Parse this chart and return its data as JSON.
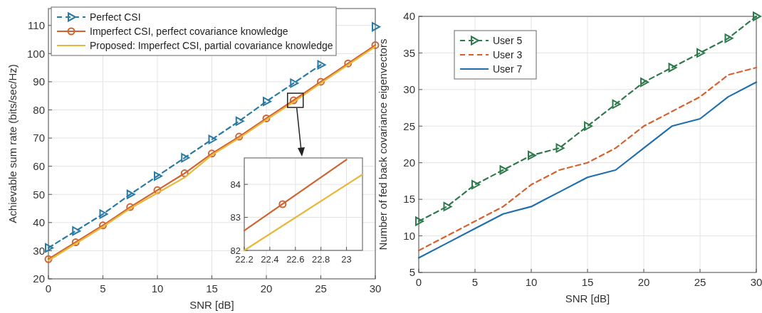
{
  "chart_data": [
    {
      "type": "line",
      "xlabel": "SNR  [dB]",
      "ylabel": "Achievable sum rate (bits/sec/Hz)",
      "x": [
        0,
        2.5,
        5,
        7.5,
        10,
        12.5,
        15,
        17.5,
        20,
        22.5,
        25,
        27.5,
        30
      ],
      "xlim": [
        0,
        30
      ],
      "xticks": [
        0,
        5,
        10,
        15,
        20,
        25,
        30
      ],
      "ylim": [
        20,
        116
      ],
      "yticks": [
        20,
        30,
        40,
        50,
        60,
        70,
        80,
        90,
        100,
        110
      ],
      "grid": true,
      "legend": "top",
      "series": [
        {
          "name": "Perfect CSI",
          "color": "#2a7aa6",
          "line_style": "dashed",
          "marker": "triangle",
          "values": [
            31,
            37,
            43,
            50,
            56.5,
            63,
            69.5,
            76,
            83,
            89.5,
            96,
            null,
            109.5
          ]
        },
        {
          "name": "Imperfect CSI, perfect covariance knowledge",
          "color": "#cf6430",
          "line_style": "solid",
          "marker": "circle",
          "values": [
            27,
            33,
            39,
            45.5,
            51.5,
            57.5,
            64.5,
            70.5,
            77,
            83.4,
            90,
            96.5,
            103
          ]
        },
        {
          "name": "Proposed: Imperfect CSI, partial covariance knowledge",
          "color": "#e9b73a",
          "line_style": "solid",
          "marker": "none",
          "values": [
            26.5,
            32.5,
            38.5,
            45,
            50.5,
            56,
            64,
            70,
            76.5,
            82.8,
            89.5,
            96,
            102.5
          ]
        }
      ]
    },
    {
      "type": "line",
      "xlabel": "SNR  [dB]",
      "ylabel": "Number of fed back covariance eigenvectors",
      "x": [
        0,
        2.5,
        5,
        7.5,
        10,
        12.5,
        15,
        17.5,
        20,
        22.5,
        25,
        27.5,
        30
      ],
      "xlim": [
        0,
        30
      ],
      "xticks": [
        0,
        5,
        10,
        15,
        20,
        25,
        30
      ],
      "ylim": [
        5,
        40
      ],
      "yticks": [
        5,
        10,
        15,
        20,
        25,
        30,
        35,
        40
      ],
      "grid": true,
      "legend": "top left",
      "series": [
        {
          "name": "User 5",
          "color": "#2f7a4c",
          "line_style": "dashed",
          "marker": "triangle",
          "values": [
            12,
            14,
            17,
            19,
            21,
            22,
            25,
            28,
            31,
            33,
            35,
            37,
            40
          ]
        },
        {
          "name": "User 3",
          "color": "#d9602c",
          "line_style": "dashed",
          "marker": "none",
          "values": [
            8,
            10,
            12,
            14,
            17,
            19,
            20,
            22,
            25,
            27,
            29,
            32,
            33
          ]
        },
        {
          "name": "User 7",
          "color": "#1f6fae",
          "line_style": "solid",
          "marker": "none",
          "values": [
            7,
            9,
            11,
            13,
            14,
            16,
            18,
            19,
            22,
            25,
            26,
            29,
            31
          ]
        }
      ]
    },
    {
      "type": "line",
      "xlim": [
        22.2,
        23.125
      ],
      "xticks": [
        22.2,
        22.4,
        22.6,
        22.8,
        23
      ],
      "ylim": [
        82,
        84.8
      ],
      "yticks": [
        82,
        83,
        84
      ],
      "grid": true,
      "series": [
        {
          "color": "#cf6430",
          "line_style": "solid",
          "marker": "none",
          "x": [
            22.2,
            23
          ],
          "values": [
            82.6,
            84.75
          ]
        },
        {
          "type": "scatter",
          "color": "#cf6430",
          "marker": "circle",
          "x": [
            22.5
          ],
          "values": [
            83.4
          ]
        },
        {
          "color": "#e9b73a",
          "line_style": "solid",
          "marker": "none",
          "x": [
            22.2,
            23.125
          ],
          "values": [
            82,
            84.3
          ]
        }
      ]
    }
  ]
}
